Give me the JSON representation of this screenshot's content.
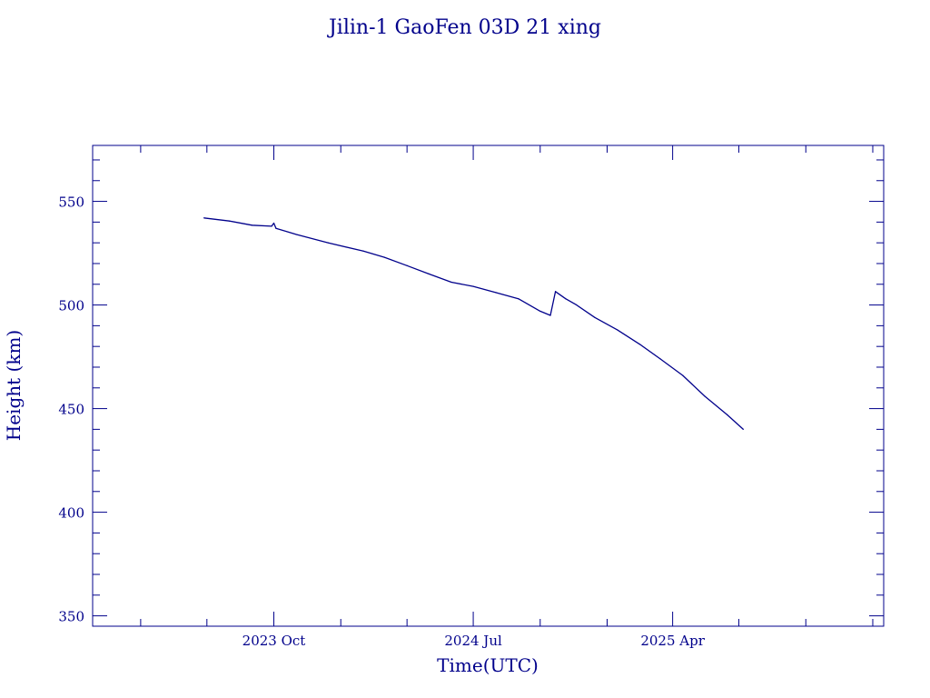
{
  "chart_data": {
    "type": "line",
    "title": "Jilin-1 GaoFen 03D 21 xing",
    "xlabel": "Time(UTC)",
    "ylabel": "Height (km)",
    "ylim": [
      345,
      577
    ],
    "xlim": [
      "2023-01-25",
      "2026-01-16"
    ],
    "y_ticks": [
      350,
      400,
      450,
      500,
      550
    ],
    "y_tick_labels": [
      "350",
      "400",
      "450",
      "500",
      "550"
    ],
    "x_ticks": [
      "2023-10-01",
      "2024-07-01",
      "2025-04-01"
    ],
    "x_tick_labels": [
      "2023 Oct",
      "2024 Jul",
      "2025 Apr"
    ],
    "grid": false,
    "colors": {
      "line": "#00008b",
      "text": "#00008b",
      "axes": "#00008b",
      "background": "#ffffff"
    },
    "series": [
      {
        "x": [
          "2023-06-27",
          "2023-08-01",
          "2023-09-01",
          "2023-09-28",
          "2023-10-01",
          "2023-10-04",
          "2023-11-01",
          "2023-12-15",
          "2024-02-01",
          "2024-03-01",
          "2024-04-01",
          "2024-05-01",
          "2024-06-01",
          "2024-07-01",
          "2024-08-01",
          "2024-09-01",
          "2024-10-01",
          "2024-10-15",
          "2024-10-22",
          "2024-11-05",
          "2024-11-20",
          "2024-12-15",
          "2025-01-15",
          "2025-02-15",
          "2025-03-15",
          "2025-04-15",
          "2025-05-15",
          "2025-06-15",
          "2025-07-07"
        ],
        "y": [
          542,
          540.5,
          538.5,
          538,
          539.5,
          537,
          534,
          530,
          526,
          523,
          519,
          515,
          511,
          509,
          506,
          503,
          497,
          495,
          506.5,
          503,
          500,
          494,
          488,
          481,
          474,
          466,
          456,
          447,
          440
        ]
      }
    ]
  }
}
